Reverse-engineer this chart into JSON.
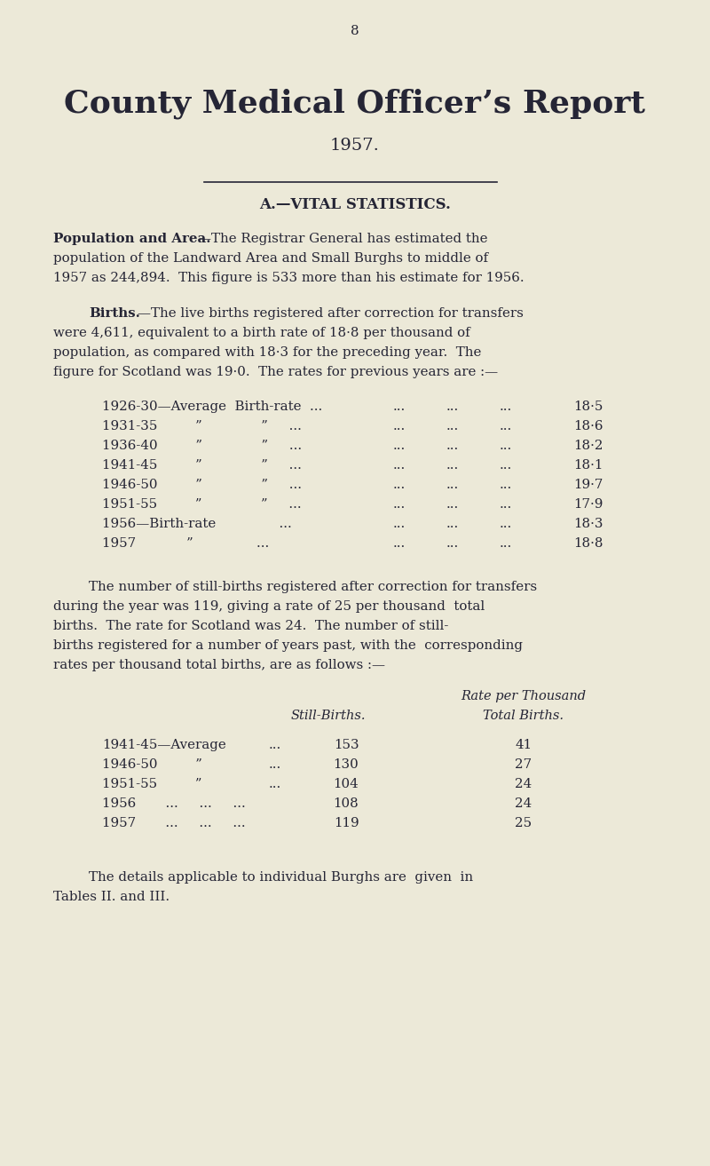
{
  "bg_color": "#ece9d8",
  "text_color": "#252535",
  "page_number": "8",
  "title": "County Medical Officer’s Report",
  "year": "1957.",
  "section_header": "A.—VITAL STATISTICS.",
  "birth_table_rows": [
    [
      "1926-30—Average  Birth-rate  ...",
      "...",
      "...",
      "...",
      "18·5"
    ],
    [
      "1931-35         ”              ”     ...",
      "...",
      "...",
      "...",
      "18·6"
    ],
    [
      "1936-40         ”              ”     ...",
      "...",
      "...",
      "...",
      "18·2"
    ],
    [
      "1941-45         ”              ”     ...",
      "...",
      "...",
      "...",
      "18·1"
    ],
    [
      "1946-50         ”              ”     ...",
      "...",
      "...",
      "...",
      "19·7"
    ],
    [
      "1951-55         ”              ”     ...",
      "...",
      "...",
      "...",
      "17·9"
    ],
    [
      "1956—Birth-rate               ...",
      "...",
      "...",
      "...",
      "18·3"
    ],
    [
      "1957            ”               ...",
      "...",
      "...",
      "...",
      "18·8"
    ]
  ],
  "still_birth_table_rows": [
    [
      "1941-45—Average",
      "...",
      "153",
      "41"
    ],
    [
      "1946-50         ”",
      "...",
      "130",
      "27"
    ],
    [
      "1951-55         ”",
      "...",
      "104",
      "24"
    ],
    [
      "1956       ...     ...     ...",
      "",
      "108",
      "24"
    ],
    [
      "1957       ...     ...     ...",
      "",
      "119",
      "25"
    ]
  ]
}
